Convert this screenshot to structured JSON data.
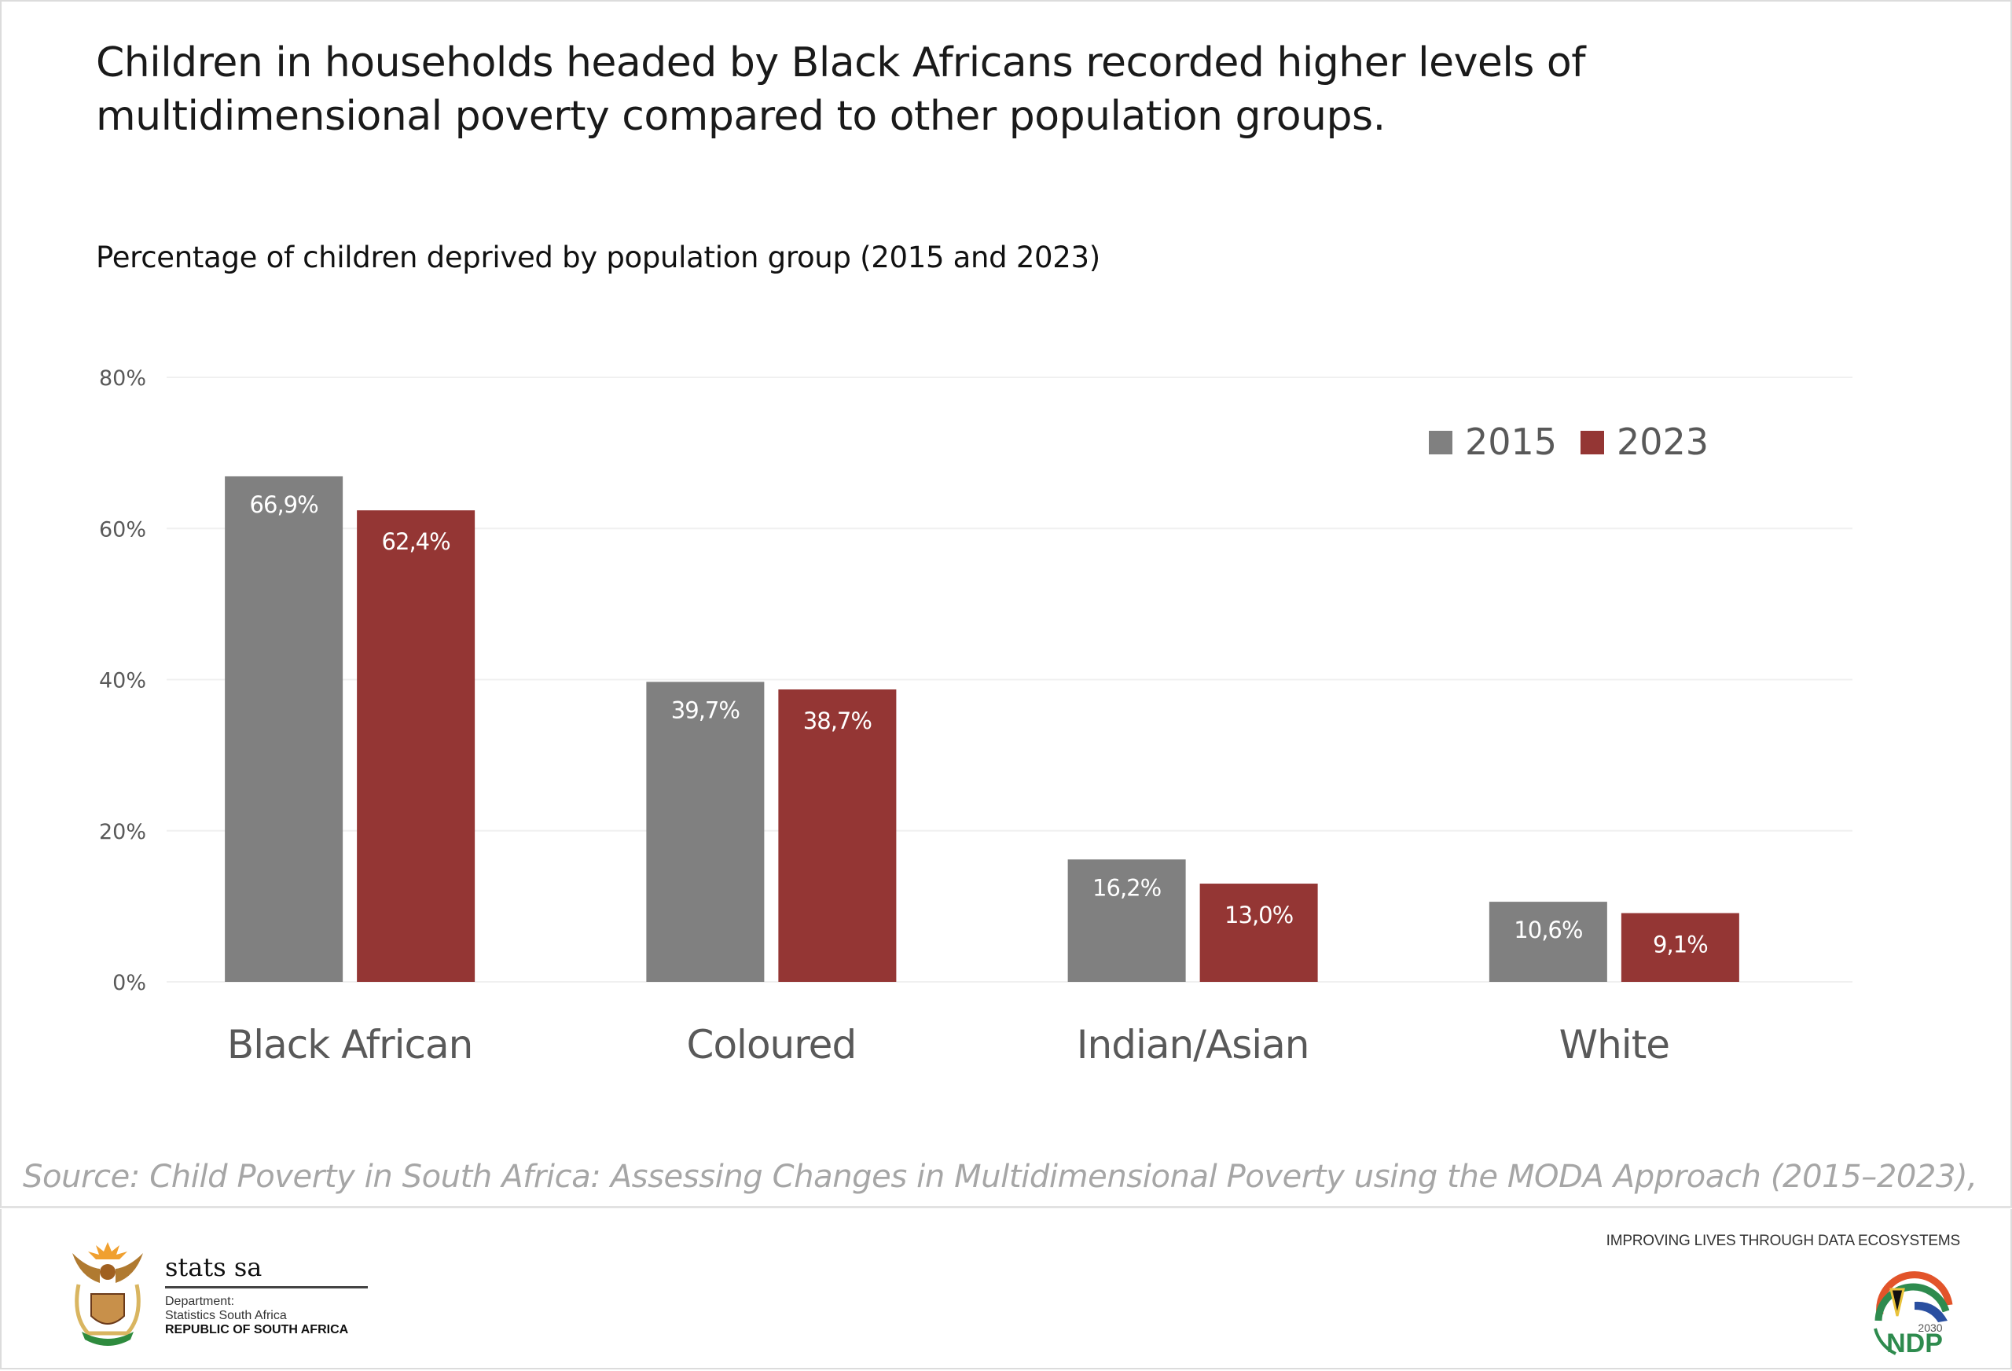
{
  "header": {
    "title": "Children in households headed by Black Africans recorded higher levels of multidimensional poverty compared to other population groups.",
    "subtitle": "Percentage of children deprived by population group (2015 and 2023)"
  },
  "source": "Source: Child Poverty in South Africa: Assessing Changes in Multidimensional Poverty using the MODA Approach (2015–2023),",
  "footer": {
    "org_name": "stats sa",
    "org_line1": "Department:",
    "org_line2": "Statistics South Africa",
    "org_line3": "REPUBLIC OF SOUTH AFRICA",
    "tagline": "IMPROVING LIVES THROUGH DATA ECOSYSTEMS",
    "ndp_year": "2030",
    "ndp_label": "NDP"
  },
  "colors": {
    "series_2015": "#808080",
    "series_2023": "#943634",
    "axis_text": "#595959",
    "gridline": "#f0f0f0"
  },
  "chart_data": {
    "type": "bar",
    "title": "Percentage of children deprived by population group (2015 and 2023)",
    "xlabel": "",
    "ylabel": "",
    "categories": [
      "Black African",
      "Coloured",
      "Indian/Asian",
      "White"
    ],
    "series": [
      {
        "name": "2015",
        "values": [
          66.9,
          39.7,
          16.2,
          10.6
        ],
        "labels": [
          "66,9%",
          "39,7%",
          "16,2%",
          "10,6%"
        ]
      },
      {
        "name": "2023",
        "values": [
          62.4,
          38.7,
          13.0,
          9.1
        ],
        "labels": [
          "62,4%",
          "38,7%",
          "13,0%",
          "9,1%"
        ]
      }
    ],
    "ylim": [
      0,
      80
    ],
    "yticks": [
      0,
      20,
      40,
      60,
      80
    ],
    "ytick_labels": [
      "0%",
      "20%",
      "40%",
      "60%",
      "80%"
    ],
    "grid": true,
    "legend_position": "top-right"
  }
}
